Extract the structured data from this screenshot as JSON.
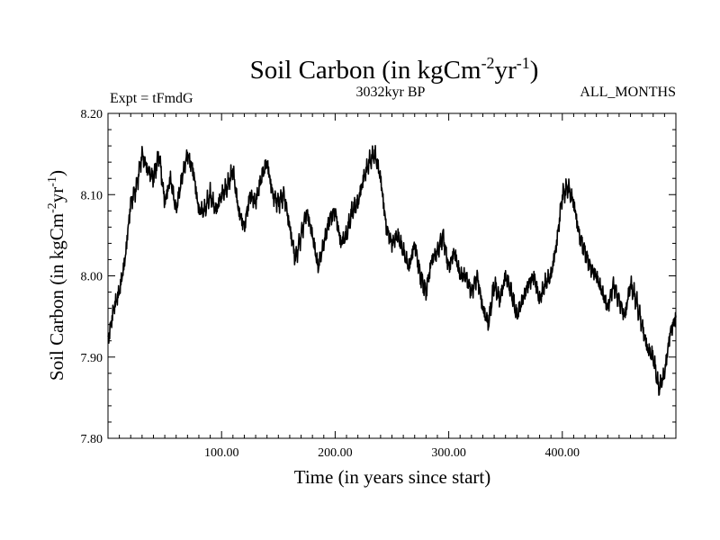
{
  "chart_data": {
    "type": "line",
    "title": "Soil Carbon (in kgCm",
    "title_sup1": "-2",
    "title_mid": "yr",
    "title_sup2": "-1",
    "title_end": ")",
    "subtitle_left": "Expt = tFmdG",
    "subtitle_center": "3032kyr BP",
    "subtitle_right": "ALL_MONTHS",
    "xlabel": "Time (in years since start)",
    "ylabel": "Soil Carbon (in kgCm",
    "ylabel_sup1": "-2",
    "ylabel_mid": "yr",
    "ylabel_sup2": "-1",
    "ylabel_end": ")",
    "xlim": [
      0,
      500
    ],
    "ylim": [
      7.8,
      8.2
    ],
    "xticks": [
      {
        "value": 100,
        "label": "100.00"
      },
      {
        "value": 200,
        "label": "200.00"
      },
      {
        "value": 300,
        "label": "300.00"
      },
      {
        "value": 400,
        "label": "400.00"
      }
    ],
    "yticks": [
      {
        "value": 7.8,
        "label": "7.80"
      },
      {
        "value": 7.9,
        "label": "7.90"
      },
      {
        "value": 8.0,
        "label": "8.00"
      },
      {
        "value": 8.1,
        "label": "8.10"
      },
      {
        "value": 8.2,
        "label": "8.20"
      }
    ],
    "series": [
      {
        "name": "Soil Carbon",
        "color": "#000000",
        "x": [
          0,
          5,
          10,
          15,
          20,
          25,
          30,
          35,
          40,
          45,
          50,
          55,
          60,
          65,
          70,
          75,
          80,
          85,
          90,
          95,
          100,
          105,
          110,
          115,
          120,
          125,
          130,
          135,
          140,
          145,
          150,
          155,
          160,
          165,
          170,
          175,
          180,
          185,
          190,
          195,
          200,
          205,
          210,
          215,
          220,
          225,
          230,
          235,
          240,
          245,
          250,
          255,
          260,
          265,
          270,
          275,
          280,
          285,
          290,
          295,
          300,
          305,
          310,
          315,
          320,
          325,
          330,
          335,
          340,
          345,
          350,
          355,
          360,
          365,
          370,
          375,
          380,
          385,
          390,
          395,
          400,
          405,
          410,
          415,
          420,
          425,
          430,
          435,
          440,
          445,
          450,
          455,
          460,
          465,
          470,
          475,
          480,
          485,
          490,
          495,
          500
        ],
        "y": [
          7.92,
          7.96,
          7.98,
          8.02,
          8.09,
          8.11,
          8.15,
          8.13,
          8.12,
          8.15,
          8.09,
          8.12,
          8.08,
          8.12,
          8.15,
          8.13,
          8.08,
          8.08,
          8.1,
          8.08,
          8.1,
          8.11,
          8.13,
          8.08,
          8.06,
          8.1,
          8.09,
          8.12,
          8.14,
          8.1,
          8.09,
          8.1,
          8.06,
          8.02,
          8.05,
          8.08,
          8.05,
          8.01,
          8.04,
          8.07,
          8.08,
          8.04,
          8.05,
          8.08,
          8.09,
          8.12,
          8.14,
          8.15,
          8.12,
          8.06,
          8.04,
          8.05,
          8.03,
          8.01,
          8.04,
          8.0,
          7.98,
          8.02,
          8.03,
          8.05,
          8.01,
          8.03,
          8.0,
          8.0,
          7.98,
          8.0,
          7.96,
          7.94,
          7.99,
          7.97,
          8.0,
          7.98,
          7.95,
          7.97,
          7.99,
          8.0,
          7.97,
          7.99,
          8.0,
          8.04,
          8.1,
          8.11,
          8.09,
          8.05,
          8.03,
          8.01,
          8.0,
          7.98,
          7.96,
          7.99,
          7.97,
          7.95,
          7.99,
          7.97,
          7.94,
          7.91,
          7.9,
          7.86,
          7.88,
          7.93,
          7.95
        ],
        "amplitude": 0.012
      }
    ]
  }
}
